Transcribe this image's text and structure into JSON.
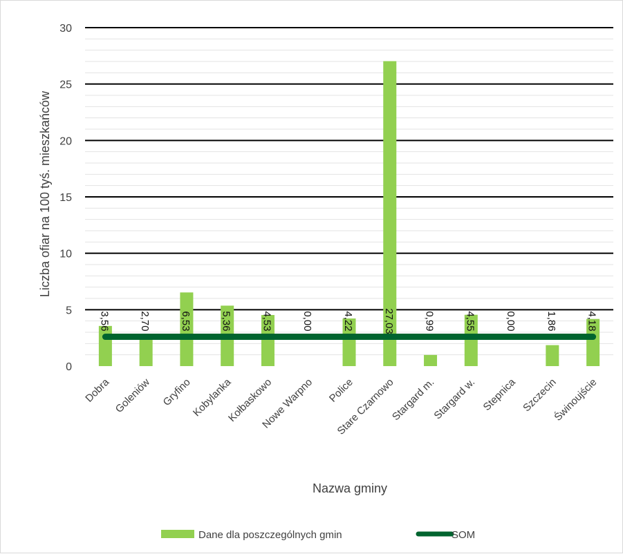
{
  "chart_data": {
    "type": "bar",
    "categories": [
      "Dobra",
      "Goleniów",
      "Gryfino",
      "Kobylanka",
      "Kołbaskowo",
      "Nowe Warpno",
      "Police",
      "Stare Czarnowo",
      "Stargard m.",
      "Stargard w.",
      "Stepnica",
      "Szczecin",
      "Świnoujście"
    ],
    "series": [
      {
        "name": "Dane dla poszczególnych gmin",
        "type": "bar",
        "color": "#92d050",
        "values": [
          3.56,
          2.7,
          6.53,
          5.36,
          4.53,
          0.0,
          4.22,
          27.03,
          0.99,
          4.55,
          0.0,
          1.86,
          4.18
        ],
        "labels": [
          "3,56",
          "2,70",
          "6,53",
          "5,36",
          "4,53",
          "0,00",
          "4,22",
          "27,03",
          "0,99",
          "4,55",
          "0,00",
          "1,86",
          "4,18"
        ]
      },
      {
        "name": "SOM",
        "type": "line",
        "color": "#00642f",
        "values": [
          2.6,
          2.6,
          2.6,
          2.6,
          2.6,
          2.6,
          2.6,
          2.6,
          2.6,
          2.6,
          2.6,
          2.6,
          2.6
        ]
      }
    ],
    "xlabel": "Nazwa gminy",
    "ylabel": "Liczba ofiar na 100 tyś. mieszkańców",
    "ylim": [
      0,
      30
    ],
    "yticks": [
      0,
      5,
      10,
      15,
      20,
      25,
      30
    ],
    "ytick_labels": [
      "0",
      "5",
      "10",
      "15",
      "20",
      "25",
      "30"
    ],
    "grid": "major and minor horizontal",
    "legend": "bottom"
  }
}
